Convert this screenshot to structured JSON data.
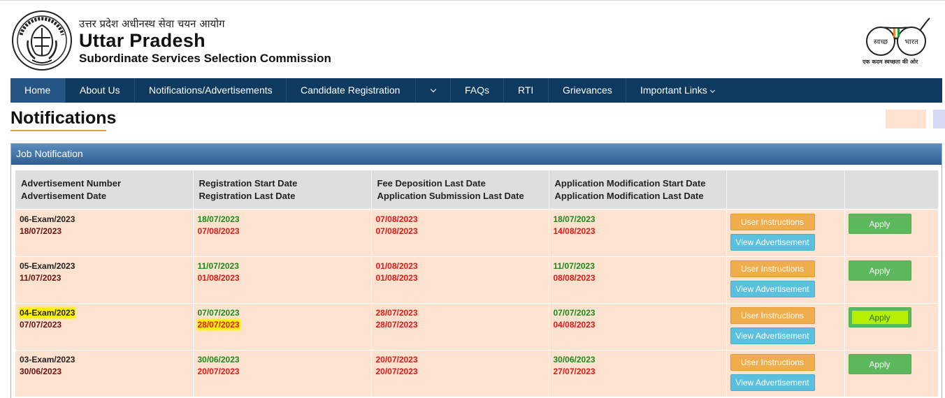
{
  "header": {
    "hindi_title": "उत्तर प्रदेश अधीनस्थ सेवा चयन आयोग",
    "title": "Uttar Pradesh",
    "subtitle": "Subordinate Services Selection Commission",
    "swachh_tagline": "एक कदम स्वच्छता की ओर",
    "swachh_left": "स्वच्छ",
    "swachh_right": "भारत"
  },
  "nav": {
    "items": [
      "Home",
      "About Us",
      "Notifications/Advertisements",
      "Candidate Registration",
      "FAQs",
      "RTI",
      "Grievances",
      "Important Links"
    ]
  },
  "page": {
    "title": "Notifications",
    "panel_title": "Job Notification"
  },
  "table": {
    "headers": [
      [
        "Advertisement Number",
        "Advertisement Date"
      ],
      [
        "Registration Start Date",
        "Registration Last Date"
      ],
      [
        "Fee Deposition Last Date",
        "Application Submission Last Date"
      ],
      [
        "Application Modification Start Date",
        "Application Modification Last Date"
      ],
      [
        "",
        ""
      ],
      [
        "",
        ""
      ]
    ],
    "rows": [
      {
        "adv_no": "06-Exam/2023",
        "adv_date": "18/07/2023",
        "reg_start": "18/07/2023",
        "reg_last": "07/08/2023",
        "fee_last": "07/08/2023",
        "sub_last": "07/08/2023",
        "mod_start": "18/07/2023",
        "mod_last": "14/08/2023",
        "ui_label": "User Instructions",
        "va_label": "View Advertisement",
        "apply_label": "Apply"
      },
      {
        "adv_no": "05-Exam/2023",
        "adv_date": "11/07/2023",
        "reg_start": "11/07/2023",
        "reg_last": "01/08/2023",
        "fee_last": "01/08/2023",
        "sub_last": "01/08/2023",
        "mod_start": "11/07/2023",
        "mod_last": "08/08/2023",
        "ui_label": "User Instructions",
        "va_label": "View Advertisement",
        "apply_label": "Apply"
      },
      {
        "adv_no": "04-Exam/2023",
        "adv_date": "07/07/2023",
        "reg_start": "07/07/2023",
        "reg_last": "28/07/2023",
        "fee_last": "28/07/2023",
        "sub_last": "28/07/2023",
        "mod_start": "07/07/2023",
        "mod_last": "04/08/2023",
        "ui_label": "User Instructions",
        "va_label": "View Advertisement",
        "apply_label": "Apply"
      },
      {
        "adv_no": "03-Exam/2023",
        "adv_date": "30/06/2023",
        "reg_start": "30/06/2023",
        "reg_last": "20/07/2023",
        "fee_last": "20/07/2023",
        "sub_last": "20/07/2023",
        "mod_start": "30/06/2023",
        "mod_last": "27/07/2023",
        "ui_label": "User Instructions",
        "va_label": "View Advertisement",
        "apply_label": "Apply"
      }
    ]
  },
  "colors": {
    "nav_bg": "#0f3a5f",
    "nav_active": "#245584",
    "row_bg": "#fde3cf",
    "header_bg": "#dedede",
    "date_green": "#1a8a1a",
    "date_red": "#e01818",
    "date_dark": "#6b1111",
    "btn_orange": "#f0ad4e",
    "btn_blue": "#5bc0de",
    "btn_green": "#5cb85c",
    "highlight": "#fff200"
  }
}
